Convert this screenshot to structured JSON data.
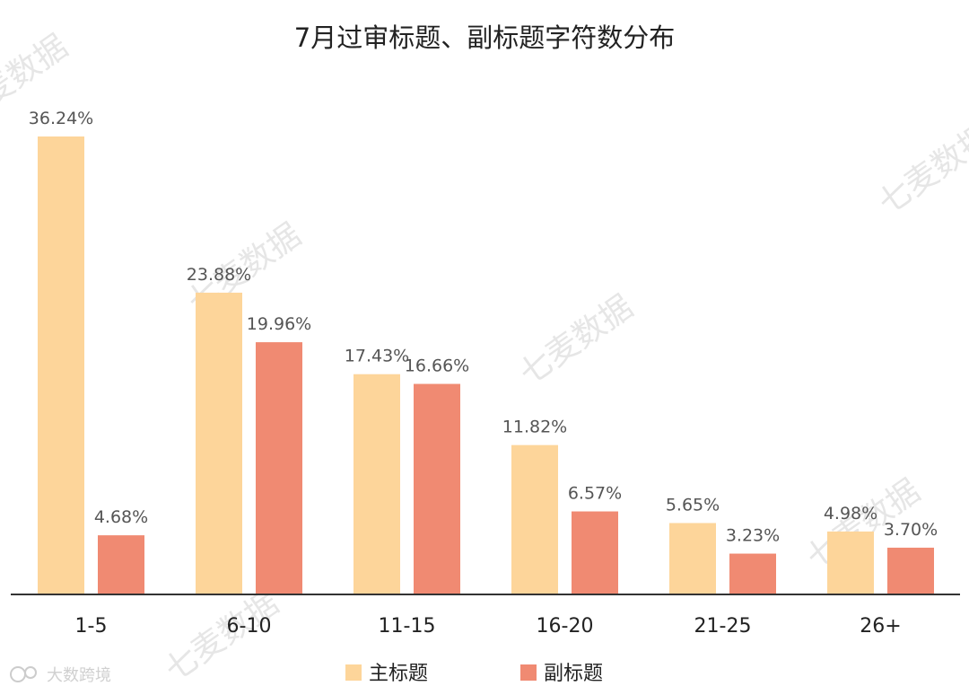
{
  "chart_data": {
    "type": "bar",
    "title": "7月过审标题、副标题字符数分布",
    "categories": [
      "1-5",
      "6-10",
      "11-15",
      "16-20",
      "21-25",
      "26+"
    ],
    "series": [
      {
        "name": "主标题",
        "values": [
          36.24,
          23.88,
          17.43,
          11.82,
          5.65,
          4.98
        ],
        "labels": [
          "36.24%",
          "23.88%",
          "17.43%",
          "11.82%",
          "5.65%",
          "4.98%"
        ],
        "color": "#FDD59A"
      },
      {
        "name": "副标题",
        "values": [
          4.68,
          19.96,
          16.66,
          6.57,
          3.23,
          3.7
        ],
        "labels": [
          "4.68%",
          "19.96%",
          "16.66%",
          "6.57%",
          "3.23%",
          "3.70%"
        ],
        "color": "#F08A72"
      }
    ],
    "ylim": [
      0,
      36.24
    ],
    "y_axis_visible": false,
    "grid": false,
    "legend_position": "bottom"
  },
  "watermark": {
    "text": "七麦数据",
    "footer": "大数跨境"
  }
}
